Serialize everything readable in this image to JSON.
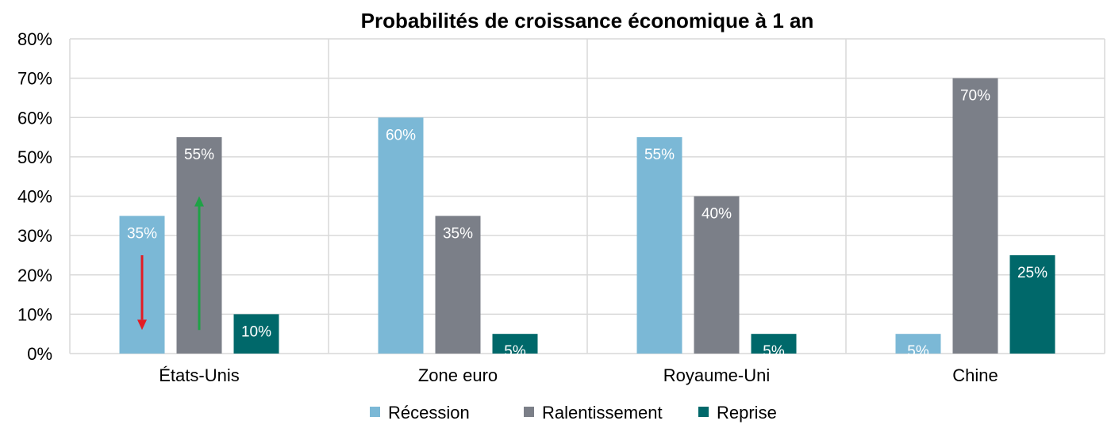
{
  "chart_data": {
    "type": "bar",
    "title": "Probabilités de croissance économique à 1 an",
    "categories": [
      "États-Unis",
      "Zone euro",
      "Royaume-Uni",
      "Chine"
    ],
    "series": [
      {
        "name": "Récession",
        "color": "#7BB8D6",
        "values": [
          35,
          60,
          55,
          5
        ],
        "labels": [
          "35%",
          "60%",
          "55%",
          "5%"
        ]
      },
      {
        "name": "Ralentissement",
        "color": "#7B7F88",
        "values": [
          55,
          35,
          40,
          70
        ],
        "labels": [
          "55%",
          "35%",
          "40%",
          "70%"
        ]
      },
      {
        "name": "Reprise",
        "color": "#00686A",
        "values": [
          10,
          5,
          5,
          25
        ],
        "labels": [
          "10%",
          "5%",
          "5%",
          "25%"
        ]
      }
    ],
    "ylim": [
      0,
      80
    ],
    "yticks": [
      "0%",
      "10%",
      "20%",
      "30%",
      "40%",
      "50%",
      "60%",
      "70%",
      "80%"
    ],
    "grid": true,
    "legend_position": "bottom",
    "annotations": [
      {
        "type": "arrow",
        "direction": "down",
        "category": "États-Unis",
        "series": "Récession",
        "from": 25,
        "to": 6,
        "color": "#E31B23"
      },
      {
        "type": "arrow",
        "direction": "up",
        "category": "États-Unis",
        "series": "Ralentissement",
        "from": 6,
        "to": 40,
        "color": "#1FA246"
      }
    ]
  }
}
